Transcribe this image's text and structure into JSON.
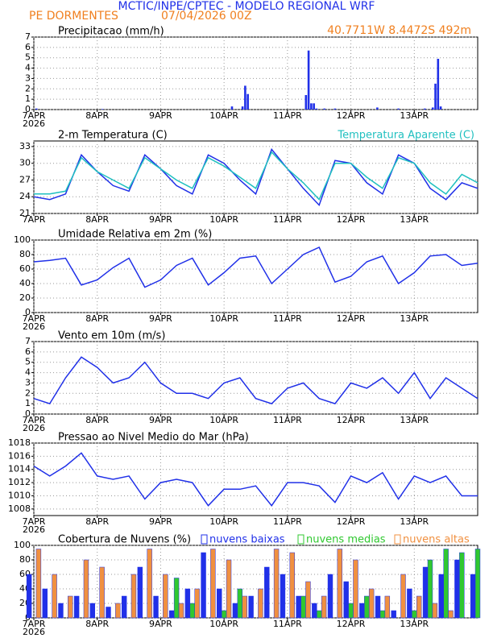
{
  "header": {
    "title": "MCTIC/INPE/CPTEC - MODELO REGIONAL WRF",
    "station": "PE DORMENTES",
    "run": "07/04/2026 00Z",
    "location": "40.7711W 8.4472S 492m"
  },
  "chart_data": [
    {
      "type": "bar",
      "title": "Precipitacao (mm/h)",
      "year": "2026",
      "x": [
        1,
        26,
        75,
        79,
        80,
        81,
        103,
        104,
        105,
        106,
        107,
        110,
        114,
        130,
        138,
        148,
        151,
        152,
        153,
        154
      ],
      "series": [
        {
          "color": "#2030e8",
          "values": [
            0.1,
            0.05,
            0.3,
            0.3,
            2.3,
            1.5,
            1.4,
            5.7,
            0.6,
            0.6,
            0.1,
            0.1,
            0.1,
            0.2,
            0.1,
            0.1,
            0.2,
            2.5,
            4.9,
            0.3
          ]
        }
      ],
      "xlim": [
        0,
        168
      ],
      "xticks": [
        {
          "value": 0,
          "label": "7APR"
        },
        {
          "value": 24,
          "label": "8APR"
        },
        {
          "value": 48,
          "label": "9APR"
        },
        {
          "value": 72,
          "label": "10APR"
        },
        {
          "value": 96,
          "label": "11APR"
        },
        {
          "value": 120,
          "label": "12APR"
        },
        {
          "value": 144,
          "label": "13APR"
        }
      ],
      "ylim": [
        0,
        7
      ],
      "yticks": [
        0,
        1,
        2,
        3,
        4,
        5,
        6,
        7
      ],
      "grid": true
    },
    {
      "type": "line",
      "title": "2-m Temperatura (C)",
      "x": [
        0,
        6,
        12,
        18,
        24,
        30,
        36,
        42,
        48,
        54,
        60,
        66,
        72,
        78,
        84,
        90,
        96,
        102,
        108,
        114,
        120,
        126,
        132,
        138,
        144,
        150,
        156,
        162,
        168
      ],
      "series": [
        {
          "color": "#2030e8",
          "values": [
            24,
            23.5,
            24.5,
            31.5,
            28.5,
            26,
            25,
            31.5,
            29,
            26,
            24.5,
            31.5,
            30,
            27,
            24.5,
            32.5,
            29,
            25.5,
            22.5,
            30.5,
            30,
            26.5,
            24.5,
            31.5,
            30,
            25.5,
            23.5,
            26.5,
            25.5
          ]
        },
        {
          "name": "Temperatura Aparente (C)",
          "color": "#20c0c0",
          "values": [
            24.5,
            24.5,
            25,
            31,
            28.5,
            27,
            25.5,
            31,
            29,
            27,
            25.5,
            31,
            29.5,
            27.5,
            25.5,
            32,
            29,
            26.5,
            23.5,
            30,
            30,
            27.5,
            25.5,
            31,
            30,
            26.5,
            24.5,
            28,
            26.5
          ]
        }
      ],
      "xlim": [
        0,
        168
      ],
      "xticks": [
        {
          "value": 0,
          "label": "7APR"
        },
        {
          "value": 24,
          "label": "8APR"
        },
        {
          "value": 48,
          "label": "9APR"
        },
        {
          "value": 72,
          "label": "10APR"
        },
        {
          "value": 96,
          "label": "11APR"
        },
        {
          "value": 120,
          "label": "12APR"
        },
        {
          "value": 144,
          "label": "13APR"
        }
      ],
      "ylim": [
        21,
        34
      ],
      "yticks": [
        21,
        24,
        27,
        30,
        33
      ],
      "grid": true
    },
    {
      "type": "line",
      "title": "Umidade Relativa em 2m (%)",
      "year": "2026",
      "x": [
        0,
        6,
        12,
        18,
        24,
        30,
        36,
        42,
        48,
        54,
        60,
        66,
        72,
        78,
        84,
        90,
        96,
        102,
        108,
        114,
        120,
        126,
        132,
        138,
        144,
        150,
        156,
        162,
        168
      ],
      "series": [
        {
          "color": "#2030e8",
          "values": [
            70,
            72,
            75,
            38,
            45,
            62,
            75,
            35,
            45,
            65,
            75,
            38,
            55,
            75,
            78,
            40,
            60,
            80,
            90,
            42,
            50,
            70,
            78,
            40,
            55,
            78,
            80,
            65,
            68
          ]
        }
      ],
      "xlim": [
        0,
        168
      ],
      "xticks": [
        {
          "value": 0,
          "label": "7APR"
        },
        {
          "value": 24,
          "label": "8APR"
        },
        {
          "value": 48,
          "label": "9APR"
        },
        {
          "value": 72,
          "label": "10APR"
        },
        {
          "value": 96,
          "label": "11APR"
        },
        {
          "value": 120,
          "label": "12APR"
        },
        {
          "value": 144,
          "label": "13APR"
        }
      ],
      "ylim": [
        0,
        100
      ],
      "yticks": [
        0,
        20,
        40,
        60,
        80,
        100
      ],
      "grid": true
    },
    {
      "type": "line",
      "title": "Vento em 10m (m/s)",
      "year": "2026",
      "x": [
        0,
        6,
        12,
        18,
        24,
        30,
        36,
        42,
        48,
        54,
        60,
        66,
        72,
        78,
        84,
        90,
        96,
        102,
        108,
        114,
        120,
        126,
        132,
        138,
        144,
        150,
        156,
        162,
        168
      ],
      "series": [
        {
          "color": "#2030e8",
          "values": [
            1.5,
            1,
            3.5,
            5.5,
            4.5,
            3,
            3.5,
            5,
            3,
            2,
            2,
            1.5,
            3,
            3.5,
            1.5,
            1,
            2.5,
            3,
            1.5,
            1,
            3,
            2.5,
            3.5,
            2,
            4,
            1.5,
            3.5,
            2.5,
            1.5
          ]
        }
      ],
      "xlim": [
        0,
        168
      ],
      "xticks": [
        {
          "value": 0,
          "label": "7APR"
        },
        {
          "value": 24,
          "label": "8APR"
        },
        {
          "value": 48,
          "label": "9APR"
        },
        {
          "value": 72,
          "label": "10APR"
        },
        {
          "value": 96,
          "label": "11APR"
        },
        {
          "value": 120,
          "label": "12APR"
        },
        {
          "value": 144,
          "label": "13APR"
        }
      ],
      "ylim": [
        0,
        7
      ],
      "yticks": [
        0,
        1,
        2,
        3,
        4,
        5,
        6,
        7
      ],
      "grid": true
    },
    {
      "type": "line",
      "title": "Pressao ao Nivel Medio do Mar (hPa)",
      "year": "2026",
      "x": [
        0,
        6,
        12,
        18,
        24,
        30,
        36,
        42,
        48,
        54,
        60,
        66,
        72,
        78,
        84,
        90,
        96,
        102,
        108,
        114,
        120,
        126,
        132,
        138,
        144,
        150,
        156,
        162,
        168
      ],
      "series": [
        {
          "color": "#2030e8",
          "values": [
            1014.5,
            1013,
            1014.5,
            1016.5,
            1013,
            1012.5,
            1013,
            1009.5,
            1012,
            1012.5,
            1012,
            1008.5,
            1011,
            1011,
            1011.5,
            1008.5,
            1012,
            1012,
            1011.5,
            1009,
            1013,
            1012,
            1013.5,
            1009.5,
            1013,
            1012,
            1013,
            1010,
            1010
          ]
        }
      ],
      "xlim": [
        0,
        168
      ],
      "xticks": [
        {
          "value": 0,
          "label": "7APR"
        },
        {
          "value": 24,
          "label": "8APR"
        },
        {
          "value": 48,
          "label": "9APR"
        },
        {
          "value": 72,
          "label": "10APR"
        },
        {
          "value": 96,
          "label": "11APR"
        },
        {
          "value": 120,
          "label": "12APR"
        },
        {
          "value": 144,
          "label": "13APR"
        }
      ],
      "ylim": [
        1007,
        1018
      ],
      "yticks": [
        1008,
        1010,
        1012,
        1014,
        1016,
        1018
      ],
      "grid": true
    },
    {
      "type": "bar",
      "title": "Cobertura de Nuvens (%)",
      "year": "2026",
      "x": [
        0,
        6,
        12,
        18,
        24,
        30,
        36,
        42,
        48,
        54,
        60,
        66,
        72,
        78,
        84,
        90,
        96,
        102,
        108,
        114,
        120,
        126,
        132,
        138,
        144,
        150,
        156,
        162,
        168
      ],
      "series": [
        {
          "name": "nuvens baixas",
          "color": "#2030e8",
          "values": [
            60,
            40,
            20,
            30,
            20,
            15,
            30,
            70,
            30,
            10,
            40,
            90,
            40,
            20,
            30,
            70,
            60,
            30,
            20,
            60,
            50,
            20,
            30,
            10,
            40,
            70,
            60,
            80,
            60
          ]
        },
        {
          "name": "nuvens medias",
          "color": "#30c830",
          "values": [
            0,
            0,
            0,
            0,
            0,
            0,
            0,
            0,
            0,
            55,
            20,
            0,
            10,
            40,
            0,
            0,
            0,
            30,
            10,
            0,
            20,
            30,
            10,
            0,
            10,
            80,
            95,
            90,
            95
          ]
        },
        {
          "name": "nuvens altas",
          "color": "#f09040",
          "values": [
            95,
            60,
            30,
            80,
            70,
            20,
            60,
            95,
            60,
            20,
            40,
            95,
            80,
            30,
            40,
            95,
            90,
            50,
            30,
            95,
            80,
            40,
            30,
            60,
            30,
            20,
            10,
            0,
            0
          ]
        }
      ],
      "xlim": [
        0,
        168
      ],
      "xticks": [
        {
          "value": 0,
          "label": "7APR"
        },
        {
          "value": 24,
          "label": "8APR"
        },
        {
          "value": 48,
          "label": "9APR"
        },
        {
          "value": 72,
          "label": "10APR"
        },
        {
          "value": 96,
          "label": "11APR"
        },
        {
          "value": 120,
          "label": "12APR"
        },
        {
          "value": 144,
          "label": "13APR"
        }
      ],
      "ylim": [
        0,
        100
      ],
      "yticks": [
        0,
        20,
        40,
        60,
        80,
        100
      ],
      "grid": true
    }
  ]
}
